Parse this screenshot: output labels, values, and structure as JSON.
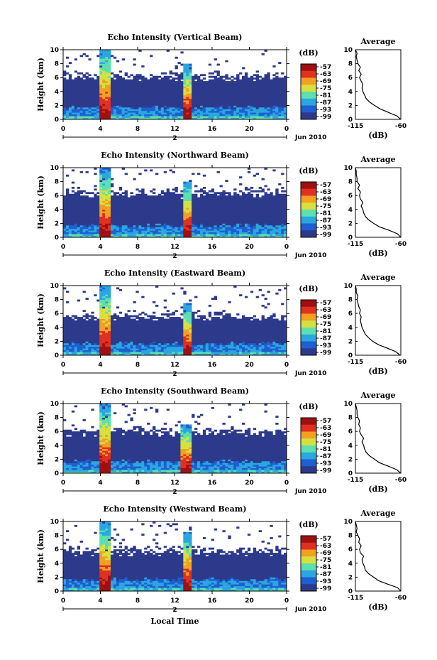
{
  "figure": {
    "xlabel": "Local Time",
    "date_label": "Jun 2010",
    "day_label": "2",
    "ylabel": "Height (km)",
    "colorbar_unit": "(dB)",
    "profile_title": "Average",
    "profile_xlabel": "(dB)",
    "colormap": [
      "#2d3a8c",
      "#1f5fd0",
      "#2aa6e0",
      "#5ce0b0",
      "#d8e040",
      "#f2a020",
      "#e03020",
      "#a01010"
    ]
  },
  "chart_data": [
    {
      "type": "heatmap",
      "title": "Echo Intensity (Vertical Beam)",
      "x_ticks": [
        "0",
        "4",
        "8",
        "12",
        "16",
        "20",
        "0"
      ],
      "y_ticks": [
        "0",
        "2",
        "4",
        "6",
        "8",
        "10"
      ],
      "xlim": [
        0,
        24
      ],
      "ylim": [
        0,
        10
      ],
      "colorbar_ticks": [
        "-57",
        "-63",
        "-69",
        "-75",
        "-81",
        "-87",
        "-93",
        "-99"
      ],
      "echo_top_km": 6.2,
      "events": [
        {
          "time_h": 4.5,
          "top_km": 10
        },
        {
          "time_h": 13.3,
          "top_km": 8
        }
      ],
      "profile": {
        "xlim": [
          -115,
          -60
        ],
        "x_ticks": [
          "-115",
          "-60"
        ],
        "y_ticks": [
          "0",
          "2",
          "4",
          "6",
          "8",
          "10"
        ],
        "height_km": [
          0,
          0.5,
          1,
          1.5,
          2,
          2.5,
          3,
          3.5,
          4,
          4.5,
          5,
          5.5,
          6,
          6.5,
          7,
          7.5,
          8,
          8.5,
          9,
          9.5,
          10
        ],
        "db": [
          -60,
          -65,
          -75,
          -85,
          -92,
          -98,
          -102,
          -104,
          -106,
          -107,
          -106,
          -108,
          -110,
          -108,
          -111,
          -109,
          -112,
          -113,
          -114,
          -113,
          -115
        ]
      }
    },
    {
      "type": "heatmap",
      "title": "Echo Intensity (Northward Beam)",
      "x_ticks": [
        "0",
        "4",
        "8",
        "12",
        "16",
        "20",
        "0"
      ],
      "y_ticks": [
        "0",
        "2",
        "4",
        "6",
        "8",
        "10"
      ],
      "xlim": [
        0,
        24
      ],
      "ylim": [
        0,
        10
      ],
      "colorbar_ticks": [
        "-57",
        "-63",
        "-69",
        "-75",
        "-81",
        "-87",
        "-93",
        "-99"
      ],
      "echo_top_km": 6.4,
      "events": [
        {
          "time_h": 4.5,
          "top_km": 10
        },
        {
          "time_h": 13.4,
          "top_km": 8
        }
      ],
      "profile": {
        "xlim": [
          -115,
          -60
        ],
        "x_ticks": [
          "-115",
          "-60"
        ],
        "y_ticks": [
          "0",
          "2",
          "4",
          "6",
          "8",
          "10"
        ],
        "height_km": [
          0,
          0.5,
          1,
          1.5,
          2,
          2.5,
          3,
          3.5,
          4,
          4.5,
          5,
          5.5,
          6,
          6.5,
          7,
          7.5,
          8,
          8.5,
          9,
          9.5,
          10
        ],
        "db": [
          -60,
          -64,
          -74,
          -86,
          -93,
          -99,
          -103,
          -105,
          -106,
          -108,
          -106,
          -109,
          -110,
          -109,
          -112,
          -110,
          -113,
          -113,
          -114,
          -114,
          -115
        ]
      }
    },
    {
      "type": "heatmap",
      "title": "Echo Intensity (Eastward Beam)",
      "x_ticks": [
        "0",
        "4",
        "8",
        "12",
        "16",
        "20",
        "0"
      ],
      "y_ticks": [
        "0",
        "2",
        "4",
        "6",
        "8",
        "10"
      ],
      "xlim": [
        0,
        24
      ],
      "ylim": [
        0,
        10
      ],
      "colorbar_ticks": [
        "-57",
        "-63",
        "-69",
        "-75",
        "-81",
        "-87",
        "-93",
        "-99"
      ],
      "echo_top_km": 5.6,
      "events": [
        {
          "time_h": 4.5,
          "top_km": 10
        },
        {
          "time_h": 13.3,
          "top_km": 7.5
        }
      ],
      "profile": {
        "xlim": [
          -115,
          -60
        ],
        "x_ticks": [
          "-115",
          "-60"
        ],
        "y_ticks": [
          "0",
          "2",
          "4",
          "6",
          "8",
          "10"
        ],
        "height_km": [
          0,
          0.5,
          1,
          1.5,
          2,
          2.5,
          3,
          3.5,
          4,
          4.5,
          5,
          5.5,
          6,
          6.5,
          7,
          7.5,
          8,
          8.5,
          9,
          9.5,
          10
        ],
        "db": [
          -61,
          -66,
          -76,
          -87,
          -94,
          -99,
          -103,
          -105,
          -107,
          -108,
          -109,
          -108,
          -110,
          -109,
          -111,
          -112,
          -113,
          -112,
          -114,
          -114,
          -115
        ]
      }
    },
    {
      "type": "heatmap",
      "title": "Echo Intensity (Southward Beam)",
      "x_ticks": [
        "0",
        "4",
        "8",
        "12",
        "16",
        "20",
        "0"
      ],
      "y_ticks": [
        "0",
        "2",
        "4",
        "6",
        "8",
        "10"
      ],
      "xlim": [
        0,
        24
      ],
      "ylim": [
        0,
        10
      ],
      "colorbar_ticks": [
        "-57",
        "-63",
        "-69",
        "-75",
        "-81",
        "-87",
        "-93",
        "-99"
      ],
      "echo_top_km": 6.0,
      "events": [
        {
          "time_h": 4.5,
          "top_km": 10
        },
        {
          "time_h": 13.2,
          "top_km": 7
        }
      ],
      "profile": {
        "xlim": [
          -115,
          -60
        ],
        "x_ticks": [
          "-115",
          "-60"
        ],
        "y_ticks": [
          "0",
          "2",
          "4",
          "6",
          "8",
          "10"
        ],
        "height_km": [
          0,
          0.5,
          1,
          1.5,
          2,
          2.5,
          3,
          3.5,
          4,
          4.5,
          5,
          5.5,
          6,
          6.5,
          7,
          7.5,
          8,
          8.5,
          9,
          9.5,
          10
        ],
        "db": [
          -60,
          -65,
          -75,
          -86,
          -92,
          -98,
          -102,
          -104,
          -105,
          -107,
          -105,
          -108,
          -110,
          -109,
          -111,
          -110,
          -112,
          -113,
          -113,
          -114,
          -115
        ]
      }
    },
    {
      "type": "heatmap",
      "title": "Echo Intensity (Westward Beam)",
      "x_ticks": [
        "0",
        "4",
        "8",
        "12",
        "16",
        "20",
        "0"
      ],
      "y_ticks": [
        "0",
        "2",
        "4",
        "6",
        "8",
        "10"
      ],
      "xlim": [
        0,
        24
      ],
      "ylim": [
        0,
        10
      ],
      "colorbar_ticks": [
        "-57",
        "-63",
        "-69",
        "-75",
        "-81",
        "-87",
        "-93",
        "-99"
      ],
      "echo_top_km": 5.8,
      "events": [
        {
          "time_h": 4.5,
          "top_km": 10
        },
        {
          "time_h": 13.3,
          "top_km": 8.5
        }
      ],
      "profile": {
        "xlim": [
          -115,
          -60
        ],
        "x_ticks": [
          "-115",
          "-60"
        ],
        "y_ticks": [
          "0",
          "2",
          "4",
          "6",
          "8",
          "10"
        ],
        "height_km": [
          0,
          0.5,
          1,
          1.5,
          2,
          2.5,
          3,
          3.5,
          4,
          4.5,
          5,
          5.5,
          6,
          6.5,
          7,
          7.5,
          8,
          8.5,
          9,
          9.5,
          10
        ],
        "db": [
          -60,
          -64,
          -76,
          -87,
          -93,
          -99,
          -103,
          -104,
          -106,
          -107,
          -105,
          -109,
          -110,
          -108,
          -111,
          -110,
          -112,
          -114,
          -113,
          -114,
          -115
        ]
      }
    }
  ]
}
